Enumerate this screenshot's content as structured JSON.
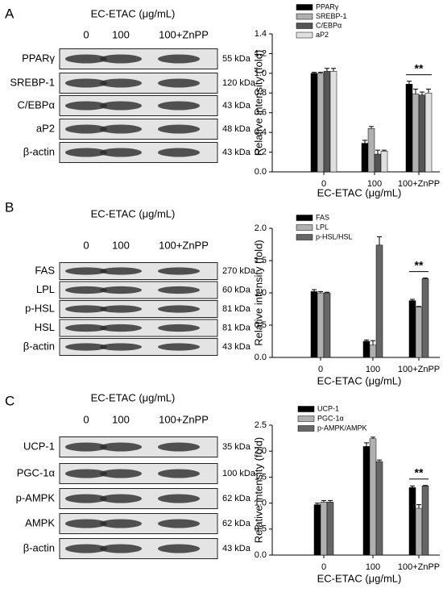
{
  "blots": [
    {
      "label": "A",
      "title": "EC-ETAC (μg/mL)",
      "lanes": [
        "0",
        "100",
        "100+ZnPP"
      ],
      "rows": [
        {
          "name": "PPARγ",
          "kda": "55 kDa"
        },
        {
          "name": "SREBP-1",
          "kda": "120 kDa"
        },
        {
          "name": "C/EBPα",
          "kda": "43 kDa"
        },
        {
          "name": "aP2",
          "kda": "48 kDa"
        },
        {
          "name": "β-actin",
          "kda": "43 kDa"
        }
      ]
    },
    {
      "label": "B",
      "title": "EC-ETAC (μg/mL)",
      "lanes": [
        "0",
        "100",
        "100+ZnPP"
      ],
      "rows": [
        {
          "name": "FAS",
          "kda": "270 kDa"
        },
        {
          "name": "LPL",
          "kda": "60 kDa"
        },
        {
          "name": "p-HSL",
          "kda": "81 kDa"
        },
        {
          "name": "HSL",
          "kda": "81 kDa"
        },
        {
          "name": "β-actin",
          "kda": "43 kDa"
        }
      ]
    },
    {
      "label": "C",
      "title": "EC-ETAC (μg/mL)",
      "lanes": [
        "0",
        "100",
        "100+ZnPP"
      ],
      "rows": [
        {
          "name": "UCP-1",
          "kda": "35 kDa"
        },
        {
          "name": "PGC-1α",
          "kda": "100 kDa"
        },
        {
          "name": "p-AMPK",
          "kda": "62 kDa"
        },
        {
          "name": "AMPK",
          "kda": "62 kDa"
        },
        {
          "name": "β-actin",
          "kda": "43 kDa"
        }
      ]
    }
  ],
  "chart_data": [
    {
      "type": "bar",
      "x_label": "EC-ETAC (μg/mL)",
      "y_label": "Relative intensity (fold)",
      "categories": [
        "0",
        "100",
        "100+ZnPP"
      ],
      "annotation": "**",
      "ylim": [
        0,
        1.4
      ],
      "yticks": [
        {
          "value": 0,
          "label": "0.0"
        },
        {
          "value": 0.2,
          "label": "0.2"
        },
        {
          "value": 0.4,
          "label": "0.4"
        },
        {
          "value": 0.6,
          "label": "0.6"
        },
        {
          "value": 0.8,
          "label": "0.8"
        },
        {
          "value": 1,
          "label": "1.0"
        },
        {
          "value": 1.2,
          "label": "1.2"
        },
        {
          "value": 1.4,
          "label": "1.4"
        }
      ],
      "series": [
        {
          "name": "PPARγ",
          "color": "#000000",
          "values": [
            1.0,
            0.29,
            0.89
          ],
          "errors": [
            0.01,
            0.03,
            0.03
          ]
        },
        {
          "name": "SREBP-1",
          "color": "#b0b0b0",
          "values": [
            1.0,
            0.44,
            0.79
          ],
          "errors": [
            0.01,
            0.02,
            0.05
          ]
        },
        {
          "name": "C/EBPα",
          "color": "#555555",
          "values": [
            1.02,
            0.18,
            0.78
          ],
          "errors": [
            0.03,
            0.04,
            0.03
          ]
        },
        {
          "name": "aP2",
          "color": "#e0e0e0",
          "values": [
            1.02,
            0.21,
            0.8
          ],
          "errors": [
            0.03,
            0.01,
            0.04
          ]
        }
      ]
    },
    {
      "type": "bar",
      "x_label": "EC-ETAC (μg/mL)",
      "y_label": "Relative intensity (fold)",
      "categories": [
        "0",
        "100",
        "100+ZnPP"
      ],
      "annotation": "**",
      "ylim": [
        0,
        2
      ],
      "yticks": [
        {
          "value": 0,
          "label": "0.0"
        },
        {
          "value": 0.5,
          "label": "0.5"
        },
        {
          "value": 1,
          "label": "1.0"
        },
        {
          "value": 1.5,
          "label": "1.5"
        },
        {
          "value": 2,
          "label": "2.0"
        }
      ],
      "series": [
        {
          "name": "FAS",
          "color": "#000000",
          "values": [
            1.02,
            0.25,
            0.88
          ],
          "errors": [
            0.03,
            0.02,
            0.02
          ]
        },
        {
          "name": "LPL",
          "color": "#b0b0b0",
          "values": [
            1.0,
            0.19,
            0.78
          ],
          "errors": [
            0.02,
            0.07,
            0.01
          ]
        },
        {
          "name": "p-HSL/HSL",
          "color": "#666666",
          "values": [
            1.0,
            1.74,
            1.22
          ],
          "errors": [
            0.01,
            0.13,
            0.01
          ]
        }
      ]
    },
    {
      "type": "bar",
      "x_label": "EC-ETAC (μg/mL)",
      "y_label": "Relative intensity (fold)",
      "categories": [
        "0",
        "100",
        "100+ZnPP"
      ],
      "annotation": "**",
      "ylim": [
        0,
        2.5
      ],
      "yticks": [
        {
          "value": 0,
          "label": "0.0"
        },
        {
          "value": 0.5,
          "label": "0.5"
        },
        {
          "value": 1,
          "label": "1.0"
        },
        {
          "value": 1.5,
          "label": "1.5"
        },
        {
          "value": 2,
          "label": "2.0"
        },
        {
          "value": 2.5,
          "label": "2.5"
        }
      ],
      "series": [
        {
          "name": "UCP-1",
          "color": "#000000",
          "values": [
            0.97,
            2.09,
            1.3
          ],
          "errors": [
            0.03,
            0.07,
            0.03
          ]
        },
        {
          "name": "PGC-1α",
          "color": "#b0b0b0",
          "values": [
            1.02,
            2.24,
            0.9
          ],
          "errors": [
            0.03,
            0.03,
            0.07
          ]
        },
        {
          "name": "p-AMPK/AMPK",
          "color": "#666666",
          "values": [
            1.02,
            1.8,
            1.33
          ],
          "errors": [
            0.03,
            0.03,
            0.01
          ]
        }
      ]
    }
  ]
}
